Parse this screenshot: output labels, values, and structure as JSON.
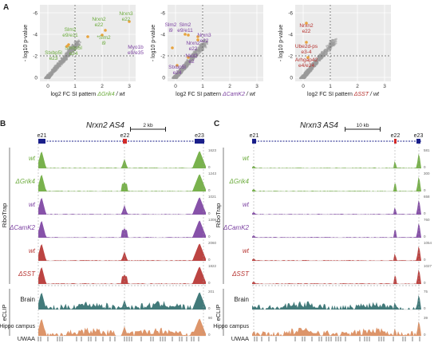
{
  "panelA": {
    "label": "A",
    "plots": [
      {
        "ylabel": "- log10 p-value",
        "xlabel_prefix": "log2 FC SI pattern ",
        "xlabel_colored": "ΔGrik4",
        "xlabel_suffix": " / wt",
        "color": "#6aaa3a",
        "yticks": [
          "-6",
          "-4",
          "-2",
          "0"
        ],
        "xticks": [
          "0",
          "1",
          "2",
          "3"
        ],
        "genes": [
          {
            "line1": "Slm2",
            "line2": "e9/e11"
          },
          {
            "line1": "Nrxn2",
            "line2": "e22"
          },
          {
            "line1": "Nrxn3",
            "line2": "e22"
          },
          {
            "line1": "*Slm2",
            "line2": "i9"
          },
          {
            "line1": "Stxbp5l",
            "line2": "e24"
          },
          {
            "line1": "Stxbp5l",
            "line2": "e23"
          }
        ]
      },
      {
        "ylabel": "- log10 p-value",
        "xlabel_prefix": "log2 FC SI pattern ",
        "xlabel_colored": "ΔCamK2",
        "xlabel_suffix": " / wt",
        "color": "#7a3fa0",
        "yticks": [
          "-6",
          "-4",
          "-2",
          "0"
        ],
        "xticks": [
          "0",
          "1",
          "2",
          "3"
        ],
        "genes": [
          {
            "line1": "Slm2",
            "line2": "i9"
          },
          {
            "line1": "Slm2",
            "line2": "e9/e11"
          },
          {
            "line1": "Nrxn3",
            "line2": "e22"
          },
          {
            "line1": "Nrxn2",
            "line2": "e22"
          },
          {
            "line1": "Myo1b",
            "line2": "e9/e35"
          },
          {
            "line1": "Nkd2",
            "line2": "e2"
          },
          {
            "line1": "Stxbp5l",
            "line2": "e24"
          }
        ]
      },
      {
        "ylabel": "- log10 p-value",
        "xlabel_prefix": "log2 FC SI pattern ",
        "xlabel_colored": "ΔSST",
        "xlabel_suffix": " / wt",
        "color": "#b5302d",
        "yticks": [
          "-6",
          "-4",
          "-2",
          "0"
        ],
        "xticks": [
          "0",
          "1",
          "2",
          "3"
        ],
        "genes": [
          {
            "line1": "Nrxn2",
            "line2": "e22"
          },
          {
            "line1": "Ube2d-ps",
            "line2": "e3-4"
          },
          {
            "line1": "Arhgap42",
            "line2": "e4/e24"
          }
        ]
      }
    ]
  },
  "panelB": {
    "label": "B",
    "title": "Nrxn2 AS4",
    "scalebar": "2 kb",
    "exons": [
      "e21",
      "e22",
      "e23"
    ],
    "group_labels": {
      "ribotrap": "RiboTrap",
      "eclip": "eCLIP",
      "uwaa": "UWAA"
    },
    "tracks": [
      {
        "label": "wt",
        "color": "#6aaa3a",
        "max": "1623",
        "min": "0"
      },
      {
        "label": "ΔGrik4",
        "color": "#6aaa3a",
        "max": "1243",
        "min": "0"
      },
      {
        "label": "wt",
        "color": "#7a3fa0",
        "max": "1021",
        "min": "0"
      },
      {
        "label": "ΔCamK2",
        "color": "#7a3fa0",
        "max": "1308",
        "min": "0"
      },
      {
        "label": "wt",
        "color": "#b5302d",
        "max": "2060",
        "min": "0"
      },
      {
        "label": "ΔSST",
        "color": "#b5302d",
        "max": "1822",
        "min": "0"
      },
      {
        "label": "Brain",
        "color": "#2e6b6b",
        "max": "201",
        "min": "0"
      },
      {
        "label": "Hippo campus",
        "color": "#d9895a",
        "max": "90",
        "min": "0"
      }
    ]
  },
  "panelC": {
    "label": "C",
    "title": "Nrxn3 AS4",
    "scalebar": "10 kb",
    "exons": [
      "e21",
      "e22",
      "e23"
    ],
    "group_labels": {
      "ribotrap": "RiboTrap",
      "eclip": "eCLIP",
      "uwaa": "UWAA"
    },
    "tracks": [
      {
        "label": "wt",
        "color": "#6aaa3a",
        "max": "581",
        "min": "0"
      },
      {
        "label": "ΔGrik4",
        "color": "#6aaa3a",
        "max": "300",
        "min": "0"
      },
      {
        "label": "wt",
        "color": "#7a3fa0",
        "max": "658",
        "min": "0"
      },
      {
        "label": "ΔCamK2",
        "color": "#7a3fa0",
        "max": "760",
        "min": "0"
      },
      {
        "label": "wt",
        "color": "#b5302d",
        "max": "1054",
        "min": "0"
      },
      {
        "label": "ΔSST",
        "color": "#b5302d",
        "max": "1027",
        "min": "0"
      },
      {
        "label": "Brain",
        "color": "#2e6b6b",
        "max": "75",
        "min": "0"
      },
      {
        "label": "Hippo campus",
        "color": "#d9895a",
        "max": "39",
        "min": "0"
      }
    ]
  }
}
